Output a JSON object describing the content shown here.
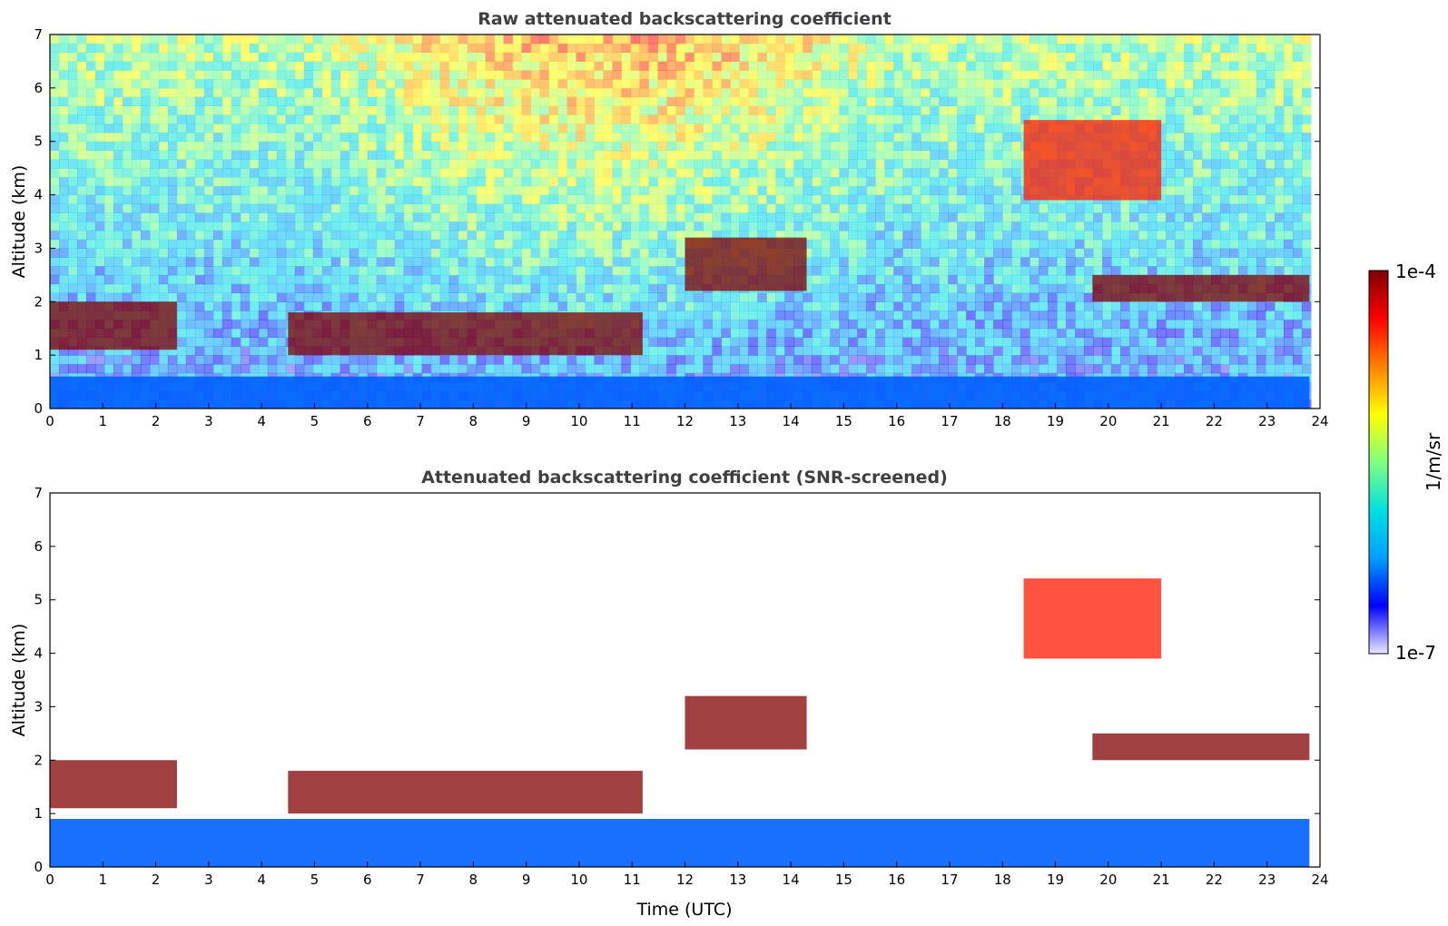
{
  "chart_data": [
    {
      "type": "heatmap",
      "title": "Raw attenuated backscattering coefficient",
      "xlabel": "",
      "ylabel": "Altitude (km)",
      "xlim": [
        0,
        24
      ],
      "ylim": [
        0,
        7
      ],
      "xticks": [
        "0",
        "1",
        "2",
        "3",
        "4",
        "5",
        "6",
        "7",
        "8",
        "9",
        "10",
        "11",
        "12",
        "13",
        "14",
        "15",
        "16",
        "17",
        "18",
        "19",
        "20",
        "21",
        "22",
        "23",
        "24"
      ],
      "yticks": [
        "0",
        "1",
        "2",
        "3",
        "4",
        "5",
        "6",
        "7"
      ],
      "features": [
        {
          "name": "boundary-layer",
          "x": [
            0,
            23.8
          ],
          "y": [
            0,
            0.6
          ],
          "level": 0.2
        },
        {
          "name": "cloud-layer-morning",
          "x": [
            0,
            2.4
          ],
          "y": [
            1.1,
            2.0
          ],
          "level": 1.0
        },
        {
          "name": "cloud-layer-midday",
          "x": [
            4.5,
            11.2
          ],
          "y": [
            1.0,
            1.8
          ],
          "level": 1.0
        },
        {
          "name": "cloud-layer-afternoon",
          "x": [
            12.0,
            14.3
          ],
          "y": [
            2.2,
            3.2
          ],
          "level": 1.0
        },
        {
          "name": "elevated-layer",
          "x": [
            18.4,
            21.0
          ],
          "y": [
            3.9,
            5.4
          ],
          "level": 0.85
        },
        {
          "name": "cloud-layer-evening",
          "x": [
            19.7,
            23.8
          ],
          "y": [
            2.0,
            2.5
          ],
          "level": 1.0
        }
      ]
    },
    {
      "type": "heatmap",
      "title": "Attenuated backscattering coefficient (SNR-screened)",
      "xlabel": "Time (UTC)",
      "ylabel": "Altitude (km)",
      "xlim": [
        0,
        24
      ],
      "ylim": [
        0,
        7
      ],
      "xticks": [
        "0",
        "1",
        "2",
        "3",
        "4",
        "5",
        "6",
        "7",
        "8",
        "9",
        "10",
        "11",
        "12",
        "13",
        "14",
        "15",
        "16",
        "17",
        "18",
        "19",
        "20",
        "21",
        "22",
        "23",
        "24"
      ],
      "yticks": [
        "0",
        "1",
        "2",
        "3",
        "4",
        "5",
        "6",
        "7"
      ],
      "features": [
        {
          "name": "boundary-layer",
          "x": [
            0,
            23.8
          ],
          "y": [
            0,
            0.9
          ],
          "level": 0.2
        },
        {
          "name": "cloud-layer-morning",
          "x": [
            0,
            2.4
          ],
          "y": [
            1.1,
            2.0
          ],
          "level": 1.0
        },
        {
          "name": "cloud-layer-midday",
          "x": [
            4.5,
            11.2
          ],
          "y": [
            1.0,
            1.8
          ],
          "level": 1.0
        },
        {
          "name": "cloud-layer-afternoon",
          "x": [
            12.0,
            14.3
          ],
          "y": [
            2.2,
            3.2
          ],
          "level": 1.0
        },
        {
          "name": "elevated-layer",
          "x": [
            18.4,
            21.0
          ],
          "y": [
            3.9,
            5.4
          ],
          "level": 0.85
        },
        {
          "name": "cloud-layer-evening",
          "x": [
            19.7,
            23.8
          ],
          "y": [
            2.0,
            2.5
          ],
          "level": 1.0
        }
      ]
    }
  ],
  "colorbar": {
    "label": "1/m/sr",
    "max_label": "1e-4",
    "min_label": "1e-7",
    "colormap": [
      "#e8e8ff",
      "#0000ff",
      "#00a0ff",
      "#00e0e0",
      "#80ff80",
      "#ffff00",
      "#ff8000",
      "#ff0000",
      "#800000"
    ]
  },
  "colors": {
    "background": "#ffffff",
    "axis": "#000000",
    "title": "#404040"
  }
}
